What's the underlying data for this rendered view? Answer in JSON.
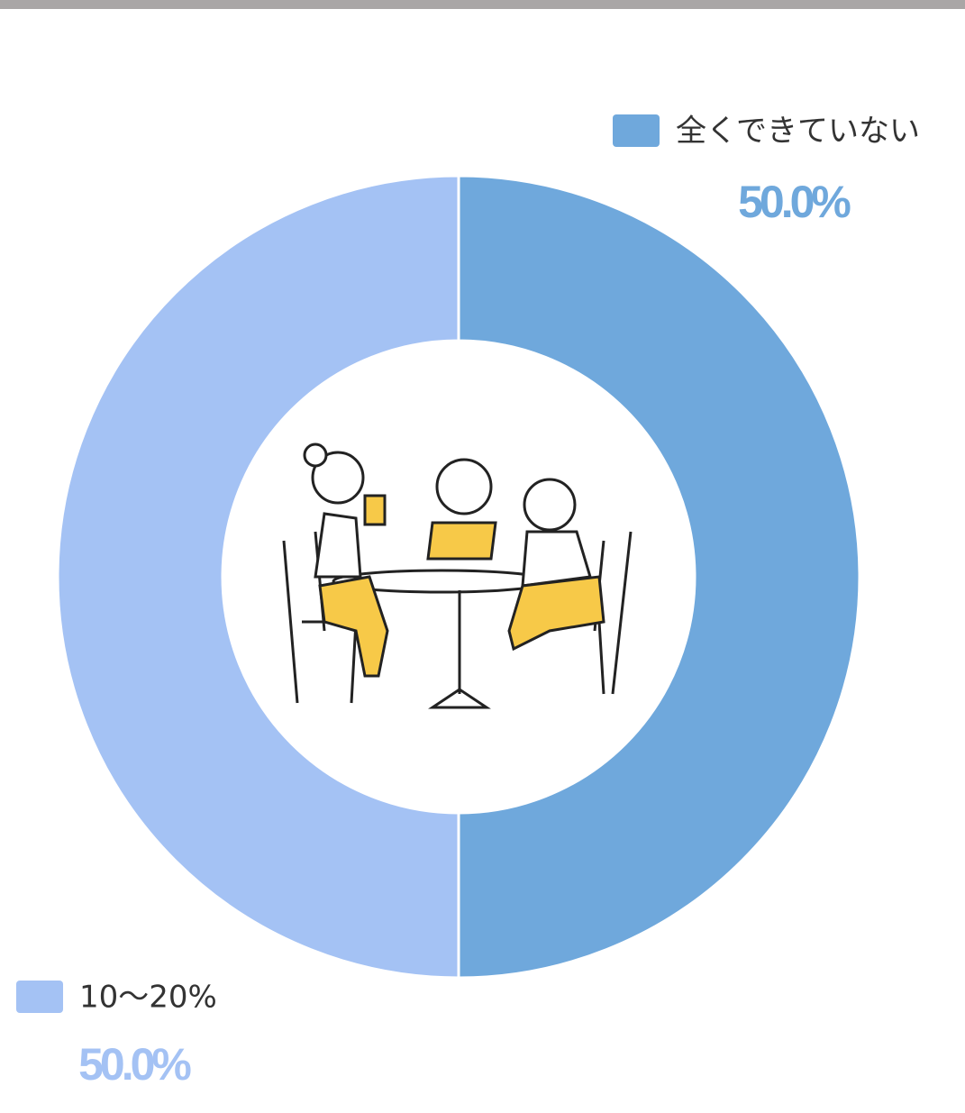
{
  "chart_data": {
    "type": "donut",
    "categories": [
      "全くできていない",
      "10〜20%"
    ],
    "values": [
      50.0,
      50.0
    ],
    "value_labels": [
      "50.0%",
      "50.0%"
    ],
    "colors": [
      "#6fa8dc",
      "#a4c2f4"
    ]
  }
}
